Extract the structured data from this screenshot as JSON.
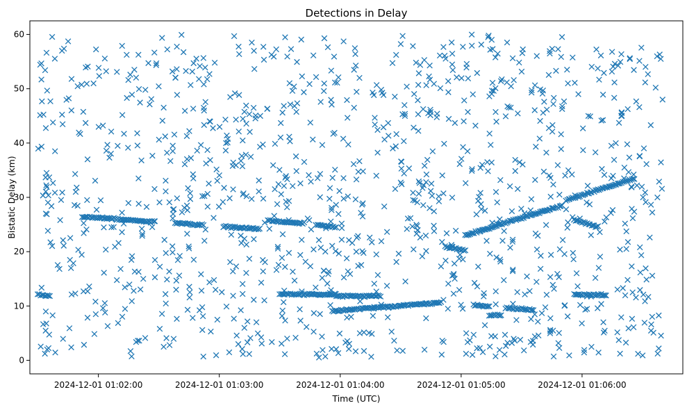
{
  "chart_data": {
    "type": "scatter",
    "title": "Detections in Delay",
    "xlabel": "Time (UTC)",
    "ylabel": "Bistatic Delay (km)",
    "x_ticks": [
      "2024-12-01 01:02:00",
      "2024-12-01 01:03:00",
      "2024-12-01 01:04:00",
      "2024-12-01 01:05:00",
      "2024-12-01 01:06:00"
    ],
    "y_ticks": [
      0,
      10,
      20,
      30,
      40,
      50,
      60
    ],
    "xlim": [
      "2024-12-01 01:01:26",
      "2024-12-01 01:06:50"
    ],
    "ylim": [
      -2.5,
      62.5
    ],
    "marker": "x",
    "color": "#1f77b4",
    "grid": false,
    "tracks": [
      {
        "x": [
          "2024-12-01 01:01:52",
          "2024-12-01 01:02:28"
        ],
        "y": [
          26.4,
          25.5
        ]
      },
      {
        "x": [
          "2024-12-01 01:02:38",
          "2024-12-01 01:02:52"
        ],
        "y": [
          25.3,
          24.9
        ]
      },
      {
        "x": [
          "2024-12-01 01:03:02",
          "2024-12-01 01:03:20"
        ],
        "y": [
          24.6,
          24.2
        ]
      },
      {
        "x": [
          "2024-12-01 01:03:24",
          "2024-12-01 01:03:42"
        ],
        "y": [
          25.7,
          25.2
        ]
      },
      {
        "x": [
          "2024-12-01 01:03:48",
          "2024-12-01 01:03:58"
        ],
        "y": [
          25.0,
          24.5
        ]
      },
      {
        "x": [
          "2024-12-01 01:03:30",
          "2024-12-01 01:03:58"
        ],
        "y": [
          12.2,
          12.1
        ]
      },
      {
        "x": [
          "2024-12-01 01:03:58",
          "2024-12-01 01:04:20"
        ],
        "y": [
          11.9,
          11.8
        ]
      },
      {
        "x": [
          "2024-12-01 01:03:56",
          "2024-12-01 01:04:30"
        ],
        "y": [
          9.1,
          10.0
        ]
      },
      {
        "x": [
          "2024-12-01 01:04:30",
          "2024-12-01 01:04:50"
        ],
        "y": [
          10.1,
          10.6
        ]
      },
      {
        "x": [
          "2024-12-01 01:04:52",
          "2024-12-01 01:05:02"
        ],
        "y": [
          20.9,
          20.3
        ]
      },
      {
        "x": [
          "2024-12-01 01:05:02",
          "2024-12-01 01:05:50"
        ],
        "y": [
          23.0,
          28.5
        ]
      },
      {
        "x": [
          "2024-12-01 01:05:52",
          "2024-12-01 01:06:26"
        ],
        "y": [
          29.5,
          33.5
        ]
      },
      {
        "x": [
          "2024-12-01 01:05:06",
          "2024-12-01 01:05:14"
        ],
        "y": [
          10.2,
          9.9
        ]
      },
      {
        "x": [
          "2024-12-01 01:05:14",
          "2024-12-01 01:05:20"
        ],
        "y": [
          8.3,
          8.2
        ]
      },
      {
        "x": [
          "2024-12-01 01:05:22",
          "2024-12-01 01:05:36"
        ],
        "y": [
          9.6,
          9.3
        ]
      },
      {
        "x": [
          "2024-12-01 01:05:56",
          "2024-12-01 01:06:12"
        ],
        "y": [
          12.1,
          12.0
        ]
      },
      {
        "x": [
          "2024-12-01 01:05:56",
          "2024-12-01 01:06:08"
        ],
        "y": [
          25.8,
          24.6
        ]
      },
      {
        "x": [
          "2024-12-01 01:01:30",
          "2024-12-01 01:01:36"
        ],
        "y": [
          12.1,
          11.9
        ]
      }
    ],
    "clutter": {
      "count": 1150,
      "x_range": [
        "2024-12-01 01:01:30",
        "2024-12-01 01:06:40"
      ],
      "y_range": [
        0.5,
        60
      ]
    }
  }
}
